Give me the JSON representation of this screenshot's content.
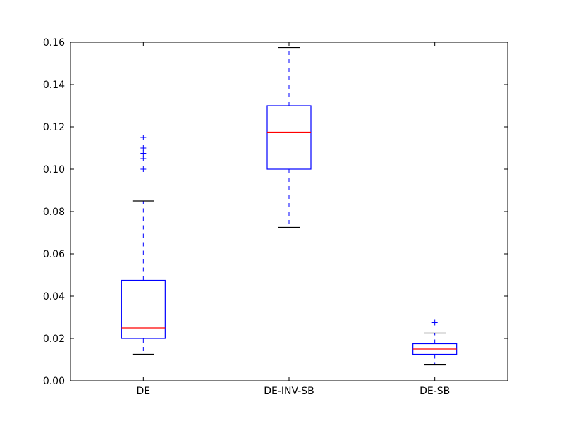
{
  "chart_data": {
    "type": "box",
    "title": "",
    "xlabel": "",
    "ylabel": "",
    "ylim": [
      0.0,
      0.16
    ],
    "yticks": [
      "0.00",
      "0.02",
      "0.04",
      "0.06",
      "0.08",
      "0.10",
      "0.12",
      "0.14",
      "0.16"
    ],
    "grid": false,
    "categories": [
      "DE",
      "DE-INV-SB",
      "DE-SB"
    ],
    "boxes": [
      {
        "category": "DE",
        "whisker_low": 0.0125,
        "q1": 0.02,
        "median": 0.025,
        "q3": 0.0475,
        "whisker_high": 0.085,
        "outliers": [
          0.1,
          0.105,
          0.1075,
          0.11,
          0.115
        ]
      },
      {
        "category": "DE-INV-SB",
        "whisker_low": 0.0725,
        "q1": 0.1,
        "median": 0.1175,
        "q3": 0.13,
        "whisker_high": 0.1575,
        "outliers": []
      },
      {
        "category": "DE-SB",
        "whisker_low": 0.0075,
        "q1": 0.0125,
        "median": 0.015,
        "q3": 0.0175,
        "whisker_high": 0.0225,
        "outliers": [
          0.0275
        ]
      }
    ],
    "colors": {
      "box": "#0000ff",
      "median": "#ff0000",
      "cap": "#000000",
      "whisker": "#0000ff",
      "outlier": "#0000ff",
      "axes": "#000000"
    }
  }
}
